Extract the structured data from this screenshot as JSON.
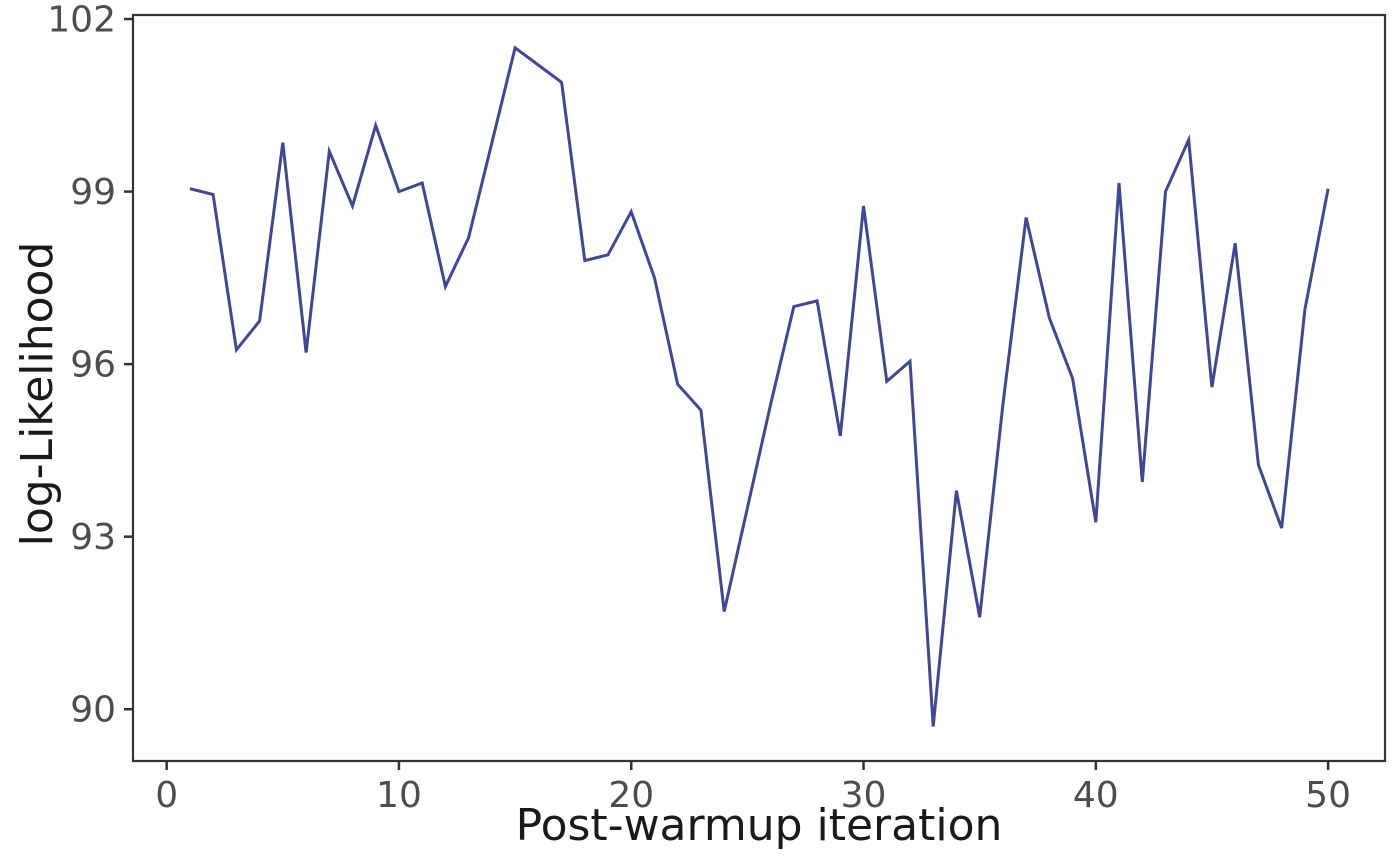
{
  "figure": {
    "background": "#ffffff",
    "panel_border_color": "#333333",
    "tick_mark_color": "#333333",
    "tick_label_color": "#4d4d4d",
    "axis_title_color": "#1a1a1a",
    "tick_label_font_px": 36,
    "axis_title_font_px": 44
  },
  "chart_data": {
    "type": "line",
    "title": "",
    "xlabel": "Post-warmup iteration",
    "ylabel": "log-Likelihood",
    "legend": null,
    "grid": false,
    "line_color": "#404896",
    "line_width": 3,
    "xlim": [
      -1.45,
      52.45
    ],
    "ylim": [
      89.1,
      102.07
    ],
    "x_ticks": [
      0,
      10,
      20,
      30,
      40,
      50
    ],
    "y_ticks": [
      90,
      93,
      96,
      99,
      102
    ],
    "x": [
      1,
      2,
      3,
      4,
      5,
      6,
      7,
      8,
      9,
      10,
      11,
      12,
      13,
      14,
      15,
      16,
      17,
      18,
      19,
      20,
      21,
      22,
      23,
      24,
      25,
      26,
      27,
      28,
      29,
      30,
      31,
      32,
      33,
      34,
      35,
      36,
      37,
      38,
      39,
      40,
      41,
      42,
      43,
      44,
      45,
      46,
      47,
      48,
      49,
      50
    ],
    "y": [
      99.05,
      98.95,
      96.25,
      96.75,
      99.85,
      96.2,
      99.7,
      98.75,
      100.15,
      99.0,
      99.15,
      97.35,
      98.2,
      99.85,
      101.5,
      101.2,
      100.9,
      97.8,
      97.9,
      98.65,
      97.5,
      95.65,
      95.2,
      91.7,
      93.5,
      95.3,
      97.0,
      97.1,
      94.75,
      98.75,
      95.7,
      96.05,
      89.7,
      93.8,
      91.6,
      95.3,
      98.55,
      96.8,
      95.75,
      93.25,
      99.15,
      93.95,
      99.0,
      99.9,
      95.6,
      98.1,
      94.25,
      93.15,
      96.95,
      99.05
    ]
  }
}
